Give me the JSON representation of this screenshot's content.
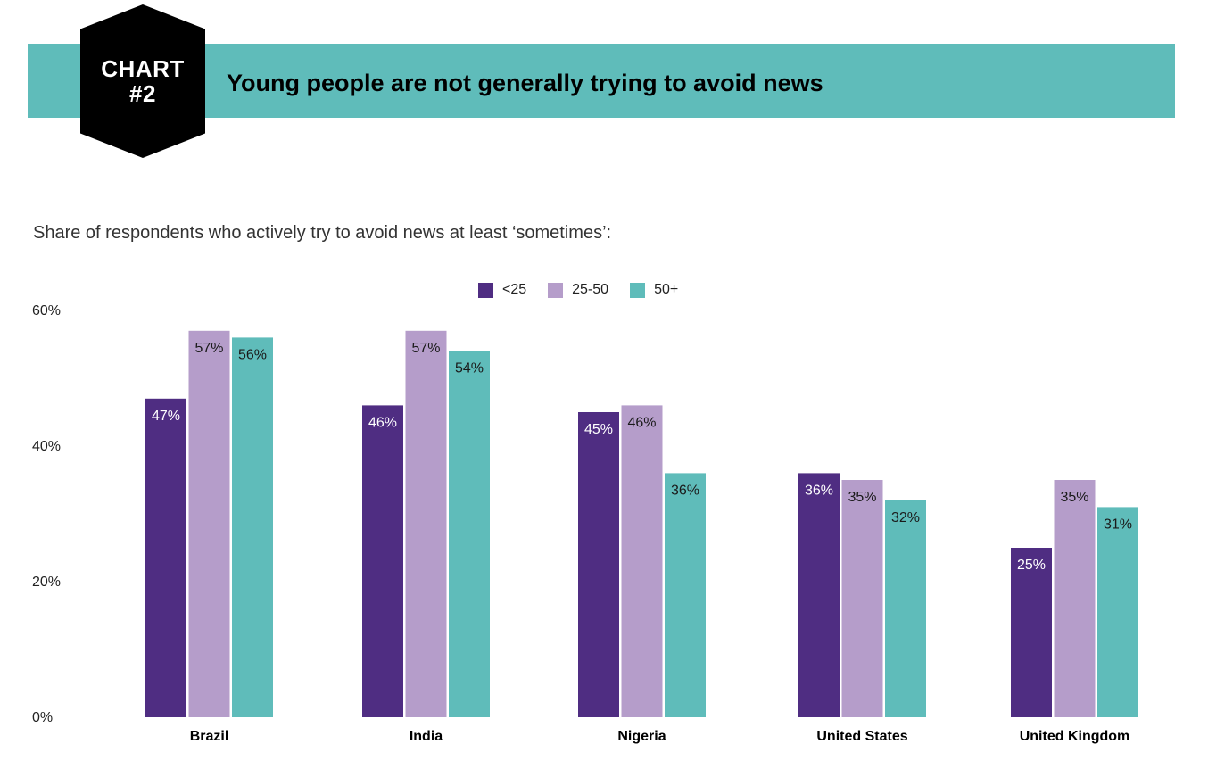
{
  "header": {
    "badge": "CHART\n#2",
    "title": "Young people are not generally trying to avoid news"
  },
  "colors": {
    "banner": "#5fbcba",
    "series": [
      "#4f2d82",
      "#b59dca",
      "#5fbcba"
    ]
  },
  "chart_data": {
    "type": "bar",
    "title": "Young people are not generally trying to avoid news",
    "subtitle": "Share of respondents who actively try to avoid news at least ‘sometimes’:",
    "categories": [
      "Brazil",
      "India",
      "Nigeria",
      "United States",
      "United Kingdom"
    ],
    "series": [
      {
        "name": "<25",
        "values": [
          47,
          46,
          45,
          36,
          25
        ]
      },
      {
        "name": "25-50",
        "values": [
          57,
          57,
          46,
          35,
          35
        ]
      },
      {
        "name": "50+",
        "values": [
          56,
          54,
          36,
          32,
          31
        ]
      }
    ],
    "ylim": [
      0,
      60
    ],
    "yticks": [
      0,
      20,
      40,
      60
    ],
    "ytick_labels": [
      "0%",
      "20%",
      "40%",
      "60%"
    ],
    "value_suffix": "%",
    "xlabel": "",
    "ylabel": "",
    "grid": false,
    "legend": "top-center"
  }
}
